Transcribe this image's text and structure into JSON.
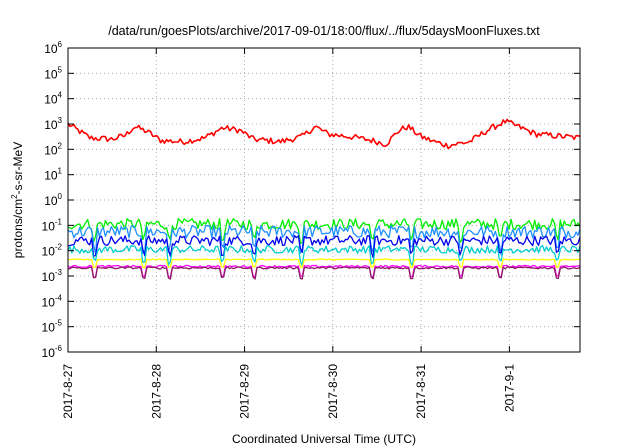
{
  "chart_data": {
    "type": "line",
    "title": "/data/run/goesPlots/archive/2017-09-01/18:00/flux/../flux/5daysMoonFluxes.txt",
    "xlabel": "Coordinated Universal Time (UTC)",
    "ylabel": {
      "pre": "protons/cm",
      "sup": "2",
      "post": "-s-sr-MeV"
    },
    "y_scale": "log",
    "ylim": [
      1e-06,
      1000000.0
    ],
    "y_tick_exponents": [
      -6,
      -5,
      -4,
      -3,
      -2,
      -1,
      0,
      1,
      2,
      3,
      4,
      5,
      6
    ],
    "y_tick_base": "10",
    "x_tick_labels": [
      "2017-8-27",
      "2017-8-28",
      "2017-8-29",
      "2017-8-30",
      "2017-8-31",
      "2017-9-1"
    ],
    "x_range_days": [
      0,
      5.8
    ],
    "grid": true,
    "series": [
      {
        "color": "#ff0000",
        "base": 2.55,
        "amp": 0.12,
        "anchors": [
          [
            0,
            3.0
          ],
          [
            0.25,
            2.45
          ],
          [
            0.5,
            2.4
          ],
          [
            0.65,
            2.55
          ],
          [
            0.75,
            2.9
          ],
          [
            0.9,
            2.7
          ],
          [
            1.05,
            2.35
          ],
          [
            1.3,
            2.3
          ],
          [
            1.55,
            2.45
          ],
          [
            1.75,
            2.85
          ],
          [
            1.95,
            2.75
          ],
          [
            2.1,
            2.4
          ],
          [
            2.4,
            2.3
          ],
          [
            2.65,
            2.5
          ],
          [
            2.8,
            2.9
          ],
          [
            2.95,
            2.6
          ],
          [
            3.2,
            2.5
          ],
          [
            3.45,
            2.35
          ],
          [
            3.6,
            2.2
          ],
          [
            3.75,
            2.75
          ],
          [
            3.85,
            2.9
          ],
          [
            4.0,
            2.5
          ],
          [
            4.15,
            2.3
          ],
          [
            4.3,
            2.15
          ],
          [
            4.55,
            2.3
          ],
          [
            4.75,
            2.75
          ],
          [
            4.95,
            3.1
          ],
          [
            5.1,
            2.9
          ],
          [
            5.3,
            2.6
          ],
          [
            5.8,
            2.45
          ]
        ]
      },
      {
        "color": "#00ee00",
        "base": -0.95,
        "amp": 0.22,
        "dips": 0.6
      },
      {
        "color": "#1e90ff",
        "base": -1.25,
        "amp": 0.25,
        "dips": 0.7
      },
      {
        "color": "#0000ee",
        "base": -1.6,
        "amp": 0.2,
        "dips": 0.5
      },
      {
        "color": "#00cdcd",
        "base": -1.95,
        "amp": 0.15,
        "dips": 0.5
      },
      {
        "color": "#ffff00",
        "base": -2.35,
        "amp": 0.02,
        "dips": 0.3
      },
      {
        "color": "#ff00ff",
        "base": -2.62,
        "amp": 0.04,
        "dips": 0.4
      },
      {
        "color": "#8b1c62",
        "base": -2.68,
        "amp": 0.04,
        "dips": 0.4
      }
    ]
  }
}
